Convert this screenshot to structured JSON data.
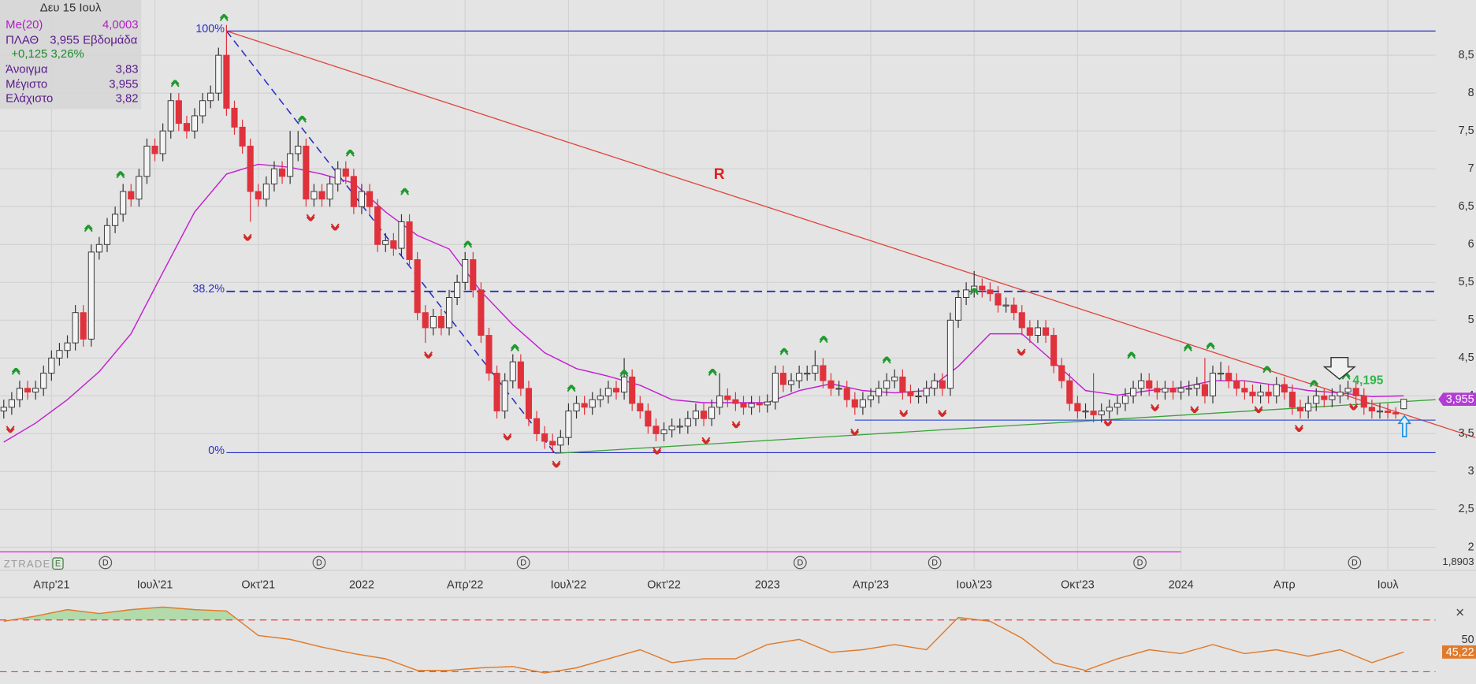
{
  "chart_data": {
    "type": "candlestick",
    "categories": [
      null,
      null,
      null,
      null,
      null,
      null,
      "Απρ'21",
      null,
      null,
      null,
      null,
      null,
      null,
      null,
      null,
      null,
      null,
      null,
      null,
      "Ιουλ'21",
      null,
      null,
      null,
      null,
      null,
      null,
      null,
      null,
      null,
      null,
      null,
      null,
      "Οκτ'21",
      null,
      null,
      null,
      null,
      null,
      null,
      null,
      null,
      null,
      null,
      null,
      null,
      "2022",
      null,
      null,
      null,
      null,
      null,
      null,
      null,
      null,
      null,
      null,
      null,
      null,
      "Απρ'22",
      null,
      null,
      null,
      null,
      null,
      null,
      null,
      null,
      null,
      null,
      null,
      null,
      "Ιουλ'22",
      null,
      null,
      null,
      null,
      null,
      null,
      null,
      null,
      null,
      null,
      null,
      "Οκτ'22",
      null,
      null,
      null,
      null,
      null,
      null,
      null,
      null,
      null,
      null,
      null,
      null,
      "2023",
      null,
      null,
      null,
      null,
      null,
      null,
      null,
      null,
      null,
      null,
      null,
      null,
      "Απρ'23",
      null,
      null,
      null,
      null,
      null,
      null,
      null,
      null,
      null,
      null,
      null,
      null,
      "Ιουλ'23",
      null,
      null,
      null,
      null,
      null,
      null,
      null,
      null,
      null,
      null,
      null,
      null,
      "Οκτ'23",
      null,
      null,
      null,
      null,
      null,
      null,
      null,
      null,
      null,
      null,
      null,
      null,
      "2024",
      null,
      null,
      null,
      null,
      null,
      null,
      null,
      null,
      null,
      null,
      null,
      null,
      "Απρ",
      null,
      null,
      null,
      null,
      null,
      null,
      null,
      null,
      null,
      null,
      null,
      null,
      "Ιουλ",
      null,
      null
    ],
    "open": [
      3.8,
      3.85,
      3.95,
      4.1,
      4.05,
      4.1,
      4.3,
      4.5,
      4.6,
      4.7,
      5.1,
      4.75,
      5.9,
      6.0,
      6.25,
      6.4,
      6.7,
      6.6,
      6.9,
      7.3,
      7.2,
      7.5,
      7.9,
      7.6,
      7.5,
      7.7,
      7.9,
      8.0,
      8.5,
      7.8,
      7.55,
      7.3,
      6.7,
      6.6,
      6.8,
      7.0,
      6.9,
      7.2,
      7.3,
      6.6,
      6.7,
      6.6,
      6.8,
      7.0,
      6.9,
      6.5,
      6.7,
      6.5,
      6.0,
      6.05,
      5.95,
      6.3,
      5.8,
      5.1,
      4.9,
      5.05,
      4.9,
      5.3,
      5.5,
      5.8,
      5.4,
      4.8,
      4.3,
      3.8,
      4.2,
      4.45,
      4.1,
      3.7,
      3.5,
      3.4,
      3.35,
      3.45,
      3.8,
      3.9,
      3.85,
      3.95,
      4.0,
      4.1,
      4.05,
      4.25,
      3.9,
      3.8,
      3.6,
      3.5,
      3.55,
      3.6,
      3.6,
      3.7,
      3.8,
      3.7,
      3.85,
      4.0,
      3.95,
      3.9,
      3.85,
      3.9,
      3.88,
      3.92,
      4.3,
      4.15,
      4.2,
      4.3,
      4.3,
      4.4,
      4.2,
      4.1,
      4.1,
      3.95,
      3.85,
      3.95,
      4.0,
      4.1,
      4.2,
      4.25,
      4.05,
      4.0,
      4.0,
      4.1,
      4.2,
      4.1,
      5.0,
      5.3,
      5.4,
      5.45,
      5.4,
      5.35,
      5.2,
      5.2,
      5.1,
      4.9,
      4.8,
      4.9,
      4.8,
      4.4,
      4.2,
      3.9,
      3.8,
      3.8,
      3.75,
      3.8,
      3.85,
      3.9,
      4.0,
      4.1,
      4.2,
      4.1,
      4.05,
      4.1,
      4.05,
      4.1,
      4.1,
      4.15,
      4.0,
      4.3,
      4.3,
      4.2,
      4.1,
      4.05,
      4.0,
      4.05,
      4.0,
      4.15,
      4.05,
      3.85,
      3.8,
      3.9,
      4.0,
      3.95,
      4.0,
      4.05,
      4.1,
      4.0,
      3.85,
      3.8,
      3.8,
      3.78,
      3.83
    ],
    "high": [
      3.95,
      4.05,
      4.2,
      4.2,
      4.2,
      4.4,
      4.6,
      4.7,
      4.8,
      5.2,
      5.2,
      6.0,
      6.1,
      6.35,
      6.5,
      6.8,
      6.8,
      7.0,
      7.4,
      7.4,
      7.6,
      8.0,
      8.0,
      7.7,
      7.8,
      8.0,
      8.1,
      8.6,
      8.9,
      7.9,
      7.65,
      7.4,
      6.8,
      6.9,
      7.1,
      7.1,
      7.5,
      7.5,
      7.4,
      6.8,
      6.8,
      6.9,
      7.1,
      7.1,
      7.0,
      6.8,
      6.8,
      6.6,
      6.15,
      6.15,
      6.4,
      6.4,
      5.9,
      5.2,
      5.15,
      5.15,
      5.4,
      5.6,
      5.9,
      5.9,
      5.5,
      4.9,
      4.4,
      4.3,
      4.55,
      4.55,
      4.2,
      3.8,
      3.6,
      3.5,
      3.55,
      3.9,
      4.0,
      4.0,
      4.05,
      4.1,
      4.2,
      4.2,
      4.5,
      4.35,
      4.0,
      3.9,
      3.7,
      3.65,
      3.7,
      3.7,
      3.8,
      3.9,
      3.9,
      3.95,
      4.3,
      4.1,
      4.05,
      4.0,
      4.0,
      4.0,
      4.02,
      4.4,
      4.4,
      4.3,
      4.4,
      4.4,
      4.6,
      4.5,
      4.3,
      4.2,
      4.2,
      4.05,
      4.05,
      4.1,
      4.2,
      4.3,
      4.35,
      4.35,
      4.15,
      4.1,
      4.2,
      4.3,
      4.3,
      5.1,
      5.4,
      5.5,
      5.65,
      5.55,
      5.5,
      5.45,
      5.3,
      5.3,
      5.2,
      5.0,
      5.0,
      5.0,
      4.9,
      4.5,
      4.3,
      4.0,
      3.9,
      4.3,
      3.9,
      3.95,
      4.0,
      4.1,
      4.2,
      4.3,
      4.3,
      4.2,
      4.2,
      4.2,
      4.2,
      4.2,
      4.25,
      4.5,
      4.4,
      4.45,
      4.4,
      4.3,
      4.2,
      4.15,
      4.15,
      4.15,
      4.25,
      4.25,
      4.15,
      3.95,
      4.0,
      4.1,
      4.1,
      4.1,
      4.15,
      4.2,
      4.2,
      4.1,
      3.95,
      3.9,
      3.9,
      3.85,
      3.955
    ],
    "low": [
      3.7,
      3.75,
      3.85,
      3.95,
      3.95,
      4.0,
      4.2,
      4.4,
      4.5,
      4.6,
      4.65,
      4.65,
      5.8,
      5.9,
      6.15,
      6.3,
      6.5,
      6.5,
      6.8,
      7.1,
      7.1,
      7.4,
      7.5,
      7.4,
      7.4,
      7.6,
      7.8,
      7.9,
      7.7,
      7.45,
      7.2,
      6.3,
      6.5,
      6.5,
      6.7,
      6.8,
      6.8,
      7.1,
      6.5,
      6.5,
      6.5,
      6.5,
      6.7,
      6.8,
      6.4,
      6.4,
      6.4,
      5.9,
      5.9,
      5.85,
      5.85,
      5.7,
      5.0,
      4.7,
      4.8,
      4.8,
      4.8,
      5.2,
      5.4,
      5.3,
      4.7,
      4.2,
      3.7,
      3.7,
      4.1,
      4.0,
      3.6,
      3.4,
      3.3,
      3.25,
      3.25,
      3.35,
      3.7,
      3.75,
      3.75,
      3.85,
      3.9,
      3.95,
      3.95,
      3.8,
      3.7,
      3.5,
      3.4,
      3.4,
      3.45,
      3.5,
      3.5,
      3.6,
      3.6,
      3.6,
      3.75,
      3.85,
      3.8,
      3.75,
      3.75,
      3.78,
      3.78,
      3.82,
      4.05,
      4.05,
      4.1,
      4.2,
      4.2,
      4.1,
      4.0,
      4.0,
      3.85,
      3.75,
      3.75,
      3.85,
      3.9,
      4.0,
      4.1,
      3.95,
      3.9,
      3.9,
      3.9,
      4.0,
      4.0,
      4.0,
      4.9,
      5.2,
      5.3,
      5.3,
      5.25,
      5.1,
      5.1,
      5.0,
      4.8,
      4.7,
      4.7,
      4.7,
      4.3,
      4.1,
      3.8,
      3.7,
      3.7,
      3.65,
      3.65,
      3.7,
      3.75,
      3.8,
      3.9,
      4.0,
      4.0,
      3.95,
      3.95,
      3.95,
      3.95,
      4.0,
      4.0,
      3.9,
      3.9,
      4.2,
      4.1,
      4.0,
      3.95,
      3.9,
      3.9,
      3.9,
      3.9,
      3.95,
      3.75,
      3.7,
      3.7,
      3.8,
      3.85,
      3.85,
      3.9,
      3.95,
      3.9,
      3.75,
      3.7,
      3.7,
      3.7,
      3.7,
      3.82
    ],
    "close": [
      3.85,
      3.95,
      4.1,
      4.05,
      4.1,
      4.3,
      4.5,
      4.6,
      4.7,
      5.1,
      4.75,
      5.9,
      6.0,
      6.25,
      6.4,
      6.7,
      6.6,
      6.9,
      7.3,
      7.2,
      7.5,
      7.9,
      7.6,
      7.5,
      7.7,
      7.9,
      8.0,
      8.5,
      7.8,
      7.55,
      7.3,
      6.7,
      6.6,
      6.8,
      7.0,
      6.9,
      7.2,
      7.3,
      6.6,
      6.7,
      6.6,
      6.8,
      7.0,
      6.9,
      6.5,
      6.7,
      6.5,
      6.0,
      6.05,
      5.95,
      6.3,
      5.8,
      5.1,
      4.9,
      5.05,
      4.9,
      5.3,
      5.5,
      5.8,
      5.4,
      4.8,
      4.3,
      3.8,
      4.2,
      4.45,
      4.1,
      3.7,
      3.5,
      3.4,
      3.35,
      3.45,
      3.8,
      3.9,
      3.85,
      3.95,
      4.0,
      4.1,
      4.05,
      4.25,
      3.9,
      3.8,
      3.6,
      3.5,
      3.55,
      3.6,
      3.6,
      3.7,
      3.8,
      3.7,
      3.85,
      4.0,
      3.95,
      3.9,
      3.85,
      3.9,
      3.88,
      3.92,
      4.3,
      4.15,
      4.2,
      4.3,
      4.3,
      4.4,
      4.2,
      4.1,
      4.1,
      3.95,
      3.85,
      3.95,
      4.0,
      4.1,
      4.2,
      4.25,
      4.05,
      4.0,
      4.0,
      4.1,
      4.2,
      4.1,
      5.0,
      5.3,
      5.4,
      5.45,
      5.4,
      5.35,
      5.2,
      5.2,
      5.1,
      4.9,
      4.8,
      4.9,
      4.8,
      4.4,
      4.2,
      3.9,
      3.8,
      3.8,
      3.75,
      3.8,
      3.85,
      3.9,
      4.0,
      4.1,
      4.2,
      4.1,
      4.05,
      4.1,
      4.05,
      4.1,
      4.1,
      4.15,
      4.0,
      4.3,
      4.3,
      4.2,
      4.1,
      4.05,
      4.0,
      4.05,
      4.0,
      4.15,
      4.05,
      3.85,
      3.8,
      3.9,
      4.0,
      3.95,
      4.0,
      4.05,
      4.1,
      4.0,
      3.85,
      3.8,
      3.8,
      3.78,
      3.76,
      3.955
    ],
    "up_color": "#f4f4f4",
    "down_color": "#e0323c",
    "ylim": [
      1.71,
      9.23
    ],
    "yticks": [
      {
        "value": 2,
        "label": "2"
      },
      {
        "value": 2.5,
        "label": "2,5"
      },
      {
        "value": 3,
        "label": "3"
      },
      {
        "value": 3.5,
        "label": "3,5"
      },
      {
        "value": 4,
        "label": "4"
      },
      {
        "value": 4.5,
        "label": "4,5"
      },
      {
        "value": 5,
        "label": "5"
      },
      {
        "value": 5.5,
        "label": "5,5"
      },
      {
        "value": 6,
        "label": "6"
      },
      {
        "value": 6.5,
        "label": "6,5"
      },
      {
        "value": 7,
        "label": "7"
      },
      {
        "value": 7.5,
        "label": "7,5"
      },
      {
        "value": 8,
        "label": "8"
      },
      {
        "value": 8.5,
        "label": "8,5"
      }
    ],
    "grid": true,
    "ma": {
      "name": "Me(20)",
      "color": "#c21fd0",
      "x": [
        0,
        4,
        8,
        12,
        16,
        20,
        24,
        28,
        32,
        36,
        40,
        44,
        48,
        52,
        56,
        60,
        64,
        68,
        72,
        76,
        80,
        84,
        88,
        92,
        96,
        100,
        104,
        108,
        112,
        116,
        120,
        124,
        128,
        132,
        136,
        140,
        144,
        148,
        152,
        156,
        160,
        164,
        168,
        172,
        176
      ],
      "values": [
        3.39,
        3.64,
        3.95,
        4.32,
        4.82,
        5.63,
        6.43,
        6.93,
        7.06,
        7.02,
        6.93,
        6.81,
        6.43,
        6.12,
        5.94,
        5.38,
        4.94,
        4.57,
        4.36,
        4.26,
        4.14,
        3.95,
        3.91,
        3.91,
        3.91,
        4.07,
        4.16,
        4.07,
        4.04,
        4.07,
        4.39,
        4.82,
        4.82,
        4.45,
        4.07,
        4.01,
        4.07,
        4.11,
        4.2,
        4.2,
        4.14,
        4.07,
        4.04,
        3.99,
        4.0003
      ]
    },
    "fibonacci": {
      "color": "#2a2ec0",
      "x": [
        28,
        180
      ],
      "levels": [
        {
          "value": 8.82,
          "label": "100%"
        },
        {
          "value": 5.38,
          "label": "38.2%"
        },
        {
          "value": 3.25,
          "label": "0%"
        }
      ]
    },
    "trendlines": [
      {
        "color": "#e0453c",
        "dash": false,
        "x": [
          28,
          185
        ],
        "values": [
          8.82,
          3.45
        ]
      },
      {
        "color": "#3aa33a",
        "dash": false,
        "x": [
          69.3,
          180
        ],
        "values": [
          3.24,
          3.95
        ]
      },
      {
        "color": "#2a2ec0",
        "dash": true,
        "x": [
          28,
          69.3
        ],
        "values": [
          8.82,
          3.24
        ]
      },
      {
        "color": "#3b55d6",
        "dash": false,
        "x": [
          107,
          180
        ],
        "values": [
          3.68,
          3.68
        ]
      },
      {
        "color": "#e020e0",
        "dash": false,
        "x": [
          -0.5,
          148
        ],
        "values": [
          1.94,
          1.94
        ]
      }
    ],
    "resistance_label": "R",
    "target": {
      "value": 4.195,
      "label": "4,195"
    },
    "last_price": {
      "value": 3.955,
      "label": "3,955"
    },
    "bottom_value": {
      "value": 1.8903,
      "label": "1,8903"
    },
    "event_marker": "D",
    "watermark": "ZTRADE",
    "watermark_icon": "E",
    "close_button": "×",
    "info": {
      "date": "Δευ 15 Ιουλ",
      "ma_value": "4,0003",
      "symbol": "ΠΛΑΘ",
      "price": "3,955",
      "period": "Εβδομάδα",
      "change": "+0,125 3,26%",
      "rows": [
        [
          "Άνοιγμα",
          "3,83"
        ],
        [
          "Μέγιστο",
          "3,955"
        ],
        [
          "Ελάχιστο",
          "3,82"
        ]
      ]
    },
    "indicator": {
      "type": "line",
      "color": "#e07a2a",
      "fill_color": "#a9d8a0",
      "ylim": [
        20.5,
        83.8
      ],
      "yticks": [
        50
      ],
      "levels": [
        70,
        30
      ],
      "x": [
        0,
        4,
        8,
        12,
        16,
        20,
        24,
        28,
        32,
        36,
        40,
        44,
        48,
        52,
        56,
        60,
        64,
        68,
        72,
        76,
        80,
        84,
        88,
        92,
        96,
        100,
        104,
        108,
        112,
        116,
        120,
        124,
        128,
        132,
        136,
        140,
        144,
        148,
        152,
        156,
        160,
        164,
        168,
        172,
        176
      ],
      "values": [
        69,
        73,
        78,
        75,
        78,
        80,
        78,
        77,
        58,
        55,
        49,
        44,
        40,
        31,
        31,
        33,
        34,
        29,
        33,
        40,
        47,
        37,
        40,
        40,
        51,
        55,
        45,
        47,
        51,
        47,
        72,
        69,
        56,
        37,
        31,
        40,
        47,
        44,
        51,
        44,
        47,
        42,
        47,
        37,
        45.22
      ],
      "last_label": "45,22"
    }
  }
}
